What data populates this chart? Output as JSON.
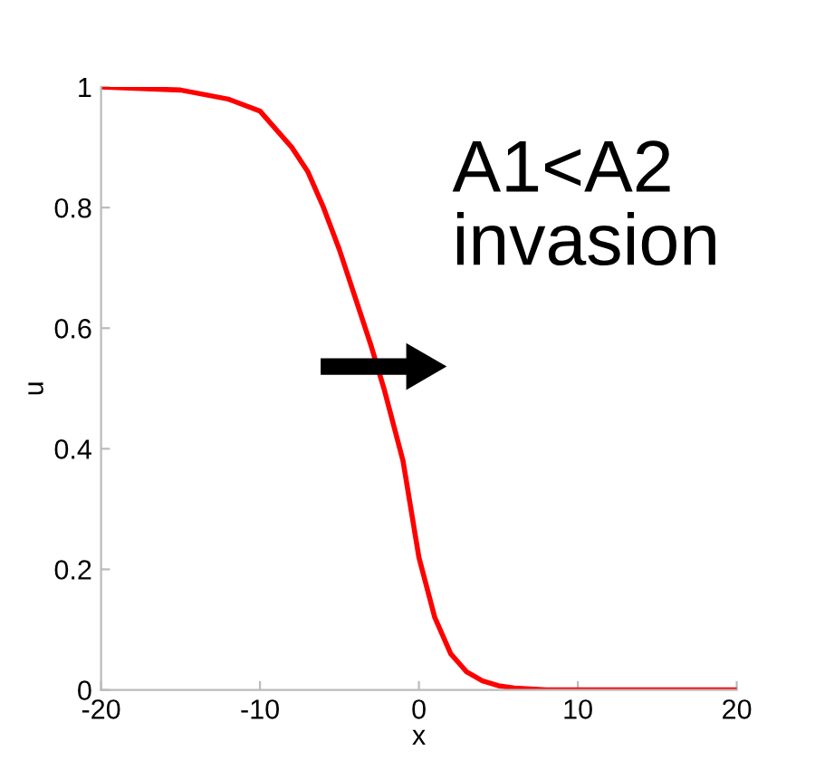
{
  "chart_data": {
    "type": "line",
    "xlabel": "x",
    "ylabel": "u",
    "x": [
      -20,
      -15,
      -12,
      -10,
      -8,
      -7,
      -6,
      -5,
      -4,
      -3,
      -2.2,
      -1,
      0,
      1,
      2,
      3,
      4,
      5,
      6,
      8,
      20
    ],
    "series": [
      {
        "color": "#ff0000",
        "values": [
          1,
          0.995,
          0.98,
          0.96,
          0.9,
          0.86,
          0.8,
          0.73,
          0.65,
          0.57,
          0.5,
          0.38,
          0.22,
          0.12,
          0.06,
          0.03,
          0.015,
          0.007,
          0.003,
          0,
          0
        ]
      }
    ],
    "xlim": [
      -20,
      20
    ],
    "xticks": [
      -20,
      -10,
      0,
      10,
      20
    ],
    "ylim": [
      0,
      1
    ],
    "yticks": [
      0,
      0.2,
      0.4,
      0.6,
      0.8,
      1
    ],
    "annotations": [
      "A1<A2\ninvasion"
    ],
    "grid": false,
    "legend": false,
    "marker": "none",
    "line_style": "solid"
  }
}
